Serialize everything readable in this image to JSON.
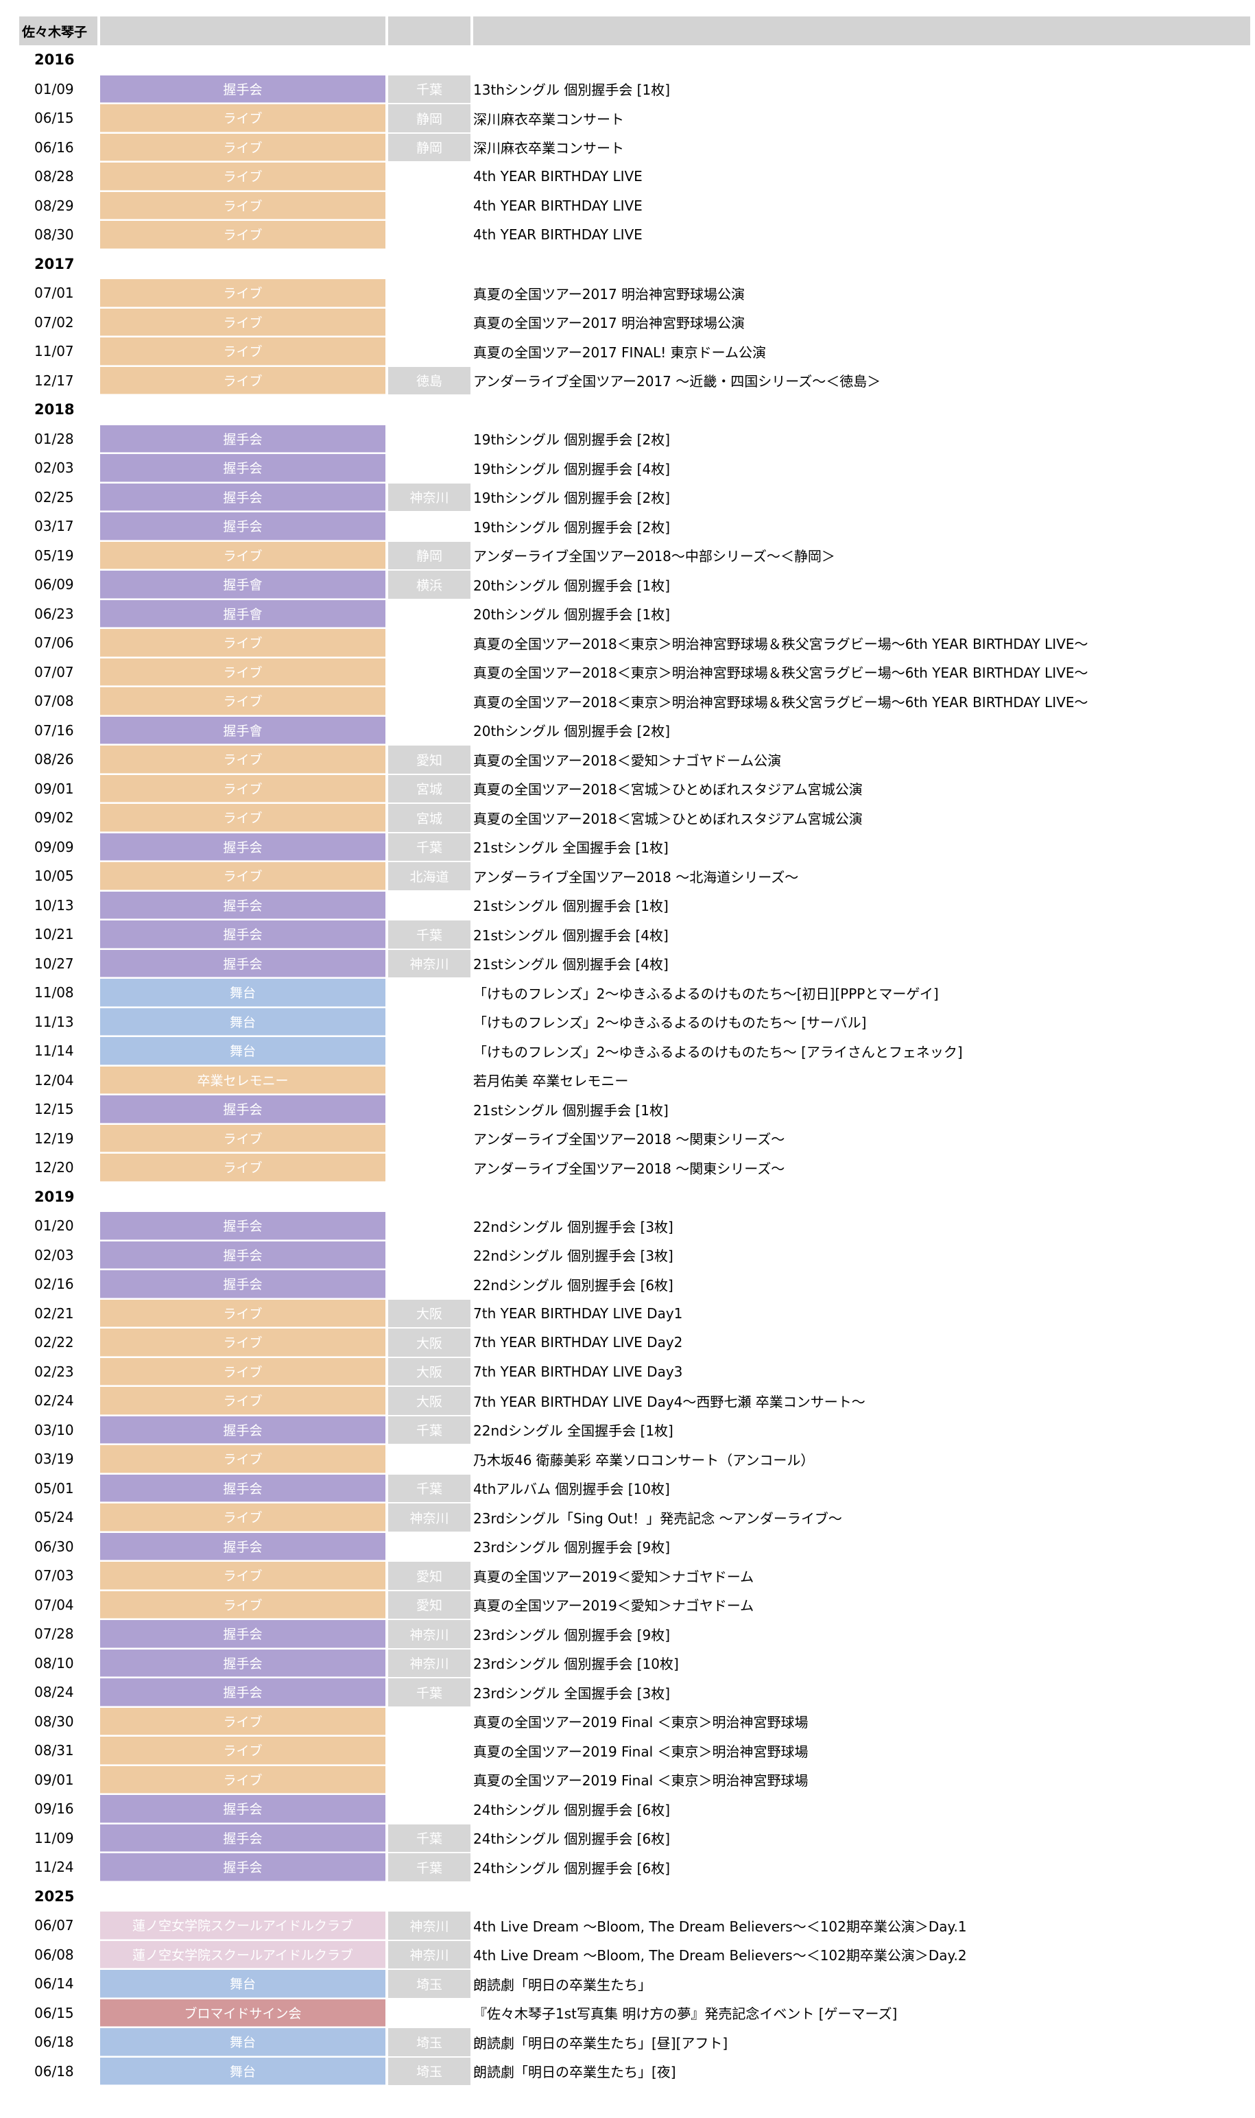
{
  "header": {
    "name": "佐々木琴子"
  },
  "colors": {
    "握手会": "#aea1d2",
    "握手會": "#aea1d2",
    "ライブ": "#eecaa0",
    "舞台": "#abc3e5",
    "卒業セレモニー": "#eecaa0",
    "蓮ノ空女学院スクールアイドルクラブ": "#e7d0de",
    "ブロマイドサイン会": "#d3989a"
  },
  "years": [
    {
      "year": "2016",
      "rows": [
        {
          "date": "01/09",
          "type": "握手会",
          "pref": "千葉",
          "title": "13thシングル 個別握手会 [1枚]"
        },
        {
          "date": "06/15",
          "type": "ライブ",
          "pref": "静岡",
          "title": "深川麻衣卒業コンサート"
        },
        {
          "date": "06/16",
          "type": "ライブ",
          "pref": "静岡",
          "title": "深川麻衣卒業コンサート"
        },
        {
          "date": "08/28",
          "type": "ライブ",
          "pref": "",
          "title": "4th YEAR BIRTHDAY LIVE"
        },
        {
          "date": "08/29",
          "type": "ライブ",
          "pref": "",
          "title": "4th YEAR BIRTHDAY LIVE"
        },
        {
          "date": "08/30",
          "type": "ライブ",
          "pref": "",
          "title": "4th YEAR BIRTHDAY LIVE"
        }
      ]
    },
    {
      "year": "2017",
      "rows": [
        {
          "date": "07/01",
          "type": "ライブ",
          "pref": "",
          "title": "真夏の全国ツアー2017 明治神宮野球場公演"
        },
        {
          "date": "07/02",
          "type": "ライブ",
          "pref": "",
          "title": "真夏の全国ツアー2017 明治神宮野球場公演"
        },
        {
          "date": "11/07",
          "type": "ライブ",
          "pref": "",
          "title": "真夏の全国ツアー2017 FINAL! 東京ドーム公演"
        },
        {
          "date": "12/17",
          "type": "ライブ",
          "pref": "徳島",
          "title": "アンダーライブ全国ツアー2017 ～近畿・四国シリーズ～＜徳島＞"
        }
      ]
    },
    {
      "year": "2018",
      "rows": [
        {
          "date": "01/28",
          "type": "握手会",
          "pref": "",
          "title": "19thシングル 個別握手会 [2枚]"
        },
        {
          "date": "02/03",
          "type": "握手会",
          "pref": "",
          "title": "19thシングル 個別握手会 [4枚]"
        },
        {
          "date": "02/25",
          "type": "握手会",
          "pref": "神奈川",
          "title": "19thシングル 個別握手会 [2枚]"
        },
        {
          "date": "03/17",
          "type": "握手会",
          "pref": "",
          "title": "19thシングル 個別握手会 [2枚]"
        },
        {
          "date": "05/19",
          "type": "ライブ",
          "pref": "静岡",
          "title": "アンダーライブ全国ツアー2018～中部シリーズ～＜静岡＞"
        },
        {
          "date": "06/09",
          "type": "握手會",
          "pref": "横浜",
          "title": "20thシングル 個別握手会 [1枚]"
        },
        {
          "date": "06/23",
          "type": "握手會",
          "pref": "",
          "title": "20thシングル 個別握手会 [1枚]"
        },
        {
          "date": "07/06",
          "type": "ライブ",
          "pref": "",
          "title": "真夏の全国ツアー2018＜東京＞明治神宮野球場＆秩父宮ラグビー場～6th YEAR BIRTHDAY LIVE～"
        },
        {
          "date": "07/07",
          "type": "ライブ",
          "pref": "",
          "title": "真夏の全国ツアー2018＜東京＞明治神宮野球場＆秩父宮ラグビー場～6th YEAR BIRTHDAY LIVE～"
        },
        {
          "date": "07/08",
          "type": "ライブ",
          "pref": "",
          "title": "真夏の全国ツアー2018＜東京＞明治神宮野球場＆秩父宮ラグビー場～6th YEAR BIRTHDAY LIVE～"
        },
        {
          "date": "07/16",
          "type": "握手會",
          "pref": "",
          "title": "20thシングル 個別握手会 [2枚]"
        },
        {
          "date": "08/26",
          "type": "ライブ",
          "pref": "愛知",
          "title": "真夏の全国ツアー2018＜愛知＞ナゴヤドーム公演"
        },
        {
          "date": "09/01",
          "type": "ライブ",
          "pref": "宮城",
          "title": "真夏の全国ツアー2018＜宮城＞ひとめぼれスタジアム宮城公演"
        },
        {
          "date": "09/02",
          "type": "ライブ",
          "pref": "宮城",
          "title": "真夏の全国ツアー2018＜宮城＞ひとめぼれスタジアム宮城公演"
        },
        {
          "date": "09/09",
          "type": "握手会",
          "pref": "千葉",
          "title": "21stシングル 全国握手会 [1枚]"
        },
        {
          "date": "10/05",
          "type": "ライブ",
          "pref": "北海道",
          "title": "アンダーライブ全国ツアー2018 ～北海道シリーズ～"
        },
        {
          "date": "10/13",
          "type": "握手会",
          "pref": "",
          "title": "21stシングル 個別握手会 [1枚]"
        },
        {
          "date": "10/21",
          "type": "握手会",
          "pref": "千葉",
          "title": "21stシングル 個別握手会 [4枚]"
        },
        {
          "date": "10/27",
          "type": "握手会",
          "pref": "神奈川",
          "title": "21stシングル 個別握手会 [4枚]"
        },
        {
          "date": "11/08",
          "type": "舞台",
          "pref": "",
          "title": "「けものフレンズ」2～ゆきふるよるのけものたち～[初日][PPPとマーゲイ]"
        },
        {
          "date": "11/13",
          "type": "舞台",
          "pref": "",
          "title": "「けものフレンズ」2～ゆきふるよるのけものたち～ [サーバル]"
        },
        {
          "date": "11/14",
          "type": "舞台",
          "pref": "",
          "title": "「けものフレンズ」2～ゆきふるよるのけものたち～ [アライさんとフェネック]"
        },
        {
          "date": "12/04",
          "type": "卒業セレモニー",
          "pref": "",
          "title": "若月佑美 卒業セレモニー"
        },
        {
          "date": "12/15",
          "type": "握手会",
          "pref": "",
          "title": "21stシングル 個別握手会 [1枚]"
        },
        {
          "date": "12/19",
          "type": "ライブ",
          "pref": "",
          "title": "アンダーライブ全国ツアー2018 ～関東シリーズ～"
        },
        {
          "date": "12/20",
          "type": "ライブ",
          "pref": "",
          "title": "アンダーライブ全国ツアー2018 ～関東シリーズ～"
        }
      ]
    },
    {
      "year": "2019",
      "rows": [
        {
          "date": "01/20",
          "type": "握手会",
          "pref": "",
          "title": "22ndシングル 個別握手会 [3枚]"
        },
        {
          "date": "02/03",
          "type": "握手会",
          "pref": "",
          "title": "22ndシングル 個別握手会 [3枚]"
        },
        {
          "date": "02/16",
          "type": "握手会",
          "pref": "",
          "title": "22ndシングル 個別握手会 [6枚]"
        },
        {
          "date": "02/21",
          "type": "ライブ",
          "pref": "大阪",
          "title": "7th YEAR BIRTHDAY LIVE Day1"
        },
        {
          "date": "02/22",
          "type": "ライブ",
          "pref": "大阪",
          "title": "7th YEAR BIRTHDAY LIVE Day2"
        },
        {
          "date": "02/23",
          "type": "ライブ",
          "pref": "大阪",
          "title": "7th YEAR BIRTHDAY LIVE Day3"
        },
        {
          "date": "02/24",
          "type": "ライブ",
          "pref": "大阪",
          "title": "7th YEAR BIRTHDAY LIVE Day4～西野七瀬 卒業コンサート～"
        },
        {
          "date": "03/10",
          "type": "握手会",
          "pref": "千葉",
          "title": "22ndシングル 全国握手会 [1枚]"
        },
        {
          "date": "03/19",
          "type": "ライブ",
          "pref": "",
          "title": "乃木坂46 衛藤美彩 卒業ソロコンサート（アンコール）"
        },
        {
          "date": "05/01",
          "type": "握手会",
          "pref": "千葉",
          "title": "4thアルバム 個別握手会 [10枚]"
        },
        {
          "date": "05/24",
          "type": "ライブ",
          "pref": "神奈川",
          "title": "23rdシングル「Sing Out！」発売記念 ～アンダーライブ～"
        },
        {
          "date": "06/30",
          "type": "握手会",
          "pref": "",
          "title": "23rdシングル 個別握手会 [9枚]"
        },
        {
          "date": "07/03",
          "type": "ライブ",
          "pref": "愛知",
          "title": "真夏の全国ツアー2019＜愛知＞ナゴヤドーム"
        },
        {
          "date": "07/04",
          "type": "ライブ",
          "pref": "愛知",
          "title": "真夏の全国ツアー2019＜愛知＞ナゴヤドーム"
        },
        {
          "date": "07/28",
          "type": "握手会",
          "pref": "神奈川",
          "title": "23rdシングル 個別握手会 [9枚]"
        },
        {
          "date": "08/10",
          "type": "握手会",
          "pref": "神奈川",
          "title": "23rdシングル 個別握手会 [10枚]"
        },
        {
          "date": "08/24",
          "type": "握手会",
          "pref": "千葉",
          "title": "23rdシングル 全国握手会 [3枚]"
        },
        {
          "date": "08/30",
          "type": "ライブ",
          "pref": "",
          "title": "真夏の全国ツアー2019 Final ＜東京＞明治神宮野球場"
        },
        {
          "date": "08/31",
          "type": "ライブ",
          "pref": "",
          "title": "真夏の全国ツアー2019 Final ＜東京＞明治神宮野球場"
        },
        {
          "date": "09/01",
          "type": "ライブ",
          "pref": "",
          "title": "真夏の全国ツアー2019 Final ＜東京＞明治神宮野球場"
        },
        {
          "date": "09/16",
          "type": "握手会",
          "pref": "",
          "title": "24thシングル 個別握手会 [6枚]"
        },
        {
          "date": "11/09",
          "type": "握手会",
          "pref": "千葉",
          "title": "24thシングル 個別握手会 [6枚]"
        },
        {
          "date": "11/24",
          "type": "握手会",
          "pref": "千葉",
          "title": "24thシングル 個別握手会 [6枚]"
        }
      ]
    },
    {
      "year": "2025",
      "rows": [
        {
          "date": "06/07",
          "type": "蓮ノ空女学院スクールアイドルクラブ",
          "pref": "神奈川",
          "title": "4th Live Dream ～Bloom, The Dream Believers～＜102期卒業公演＞Day.1"
        },
        {
          "date": "06/08",
          "type": "蓮ノ空女学院スクールアイドルクラブ",
          "pref": "神奈川",
          "title": "4th Live Dream ～Bloom, The Dream Believers～＜102期卒業公演＞Day.2"
        },
        {
          "date": "06/14",
          "type": "舞台",
          "pref": "埼玉",
          "title": "朗読劇「明日の卒業生たち」"
        },
        {
          "date": "06/15",
          "type": "ブロマイドサイン会",
          "pref": "",
          "title": "『佐々木琴子1st写真集 明け方の夢』発売記念イベント [ゲーマーズ]"
        },
        {
          "date": "06/18",
          "type": "舞台",
          "pref": "埼玉",
          "title": "朗読劇「明日の卒業生たち」[昼][アフト]"
        },
        {
          "date": "06/18",
          "type": "舞台",
          "pref": "埼玉",
          "title": "朗読劇「明日の卒業生たち」[夜]"
        }
      ]
    }
  ]
}
